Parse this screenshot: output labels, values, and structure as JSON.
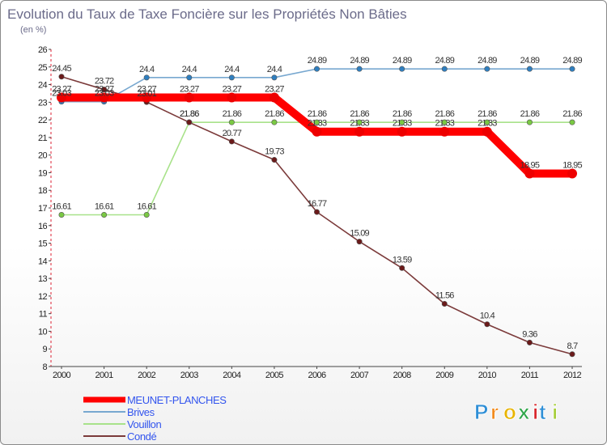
{
  "chart_data": {
    "type": "line",
    "title": "Evolution du Taux de Taxe Foncière sur les Propriétés Non Bâties",
    "subtitle": "(en %)",
    "xlabel": "",
    "ylabel": "",
    "categories": [
      "2000",
      "2001",
      "2002",
      "2003",
      "2004",
      "2005",
      "2006",
      "2007",
      "2008",
      "2009",
      "2010",
      "2011",
      "2012"
    ],
    "ylim": [
      8,
      26
    ],
    "yticks": [
      8,
      9,
      10,
      11,
      12,
      13,
      14,
      15,
      16,
      17,
      18,
      19,
      20,
      21,
      22,
      23,
      24,
      25,
      26
    ],
    "grid": false,
    "legend_position": "bottom-left",
    "series": [
      {
        "name": "MEUNET-PLANCHES",
        "color": "#ff0000",
        "point_color": "#ee0000",
        "width": "thick",
        "values": [
          23.27,
          23.27,
          23.27,
          23.27,
          23.27,
          23.27,
          21.33,
          21.33,
          21.33,
          21.33,
          21.33,
          18.95,
          18.95
        ],
        "labels": [
          "23.27",
          "23.27",
          "23.27",
          "23.27",
          "23.27",
          "23.27",
          "21.33",
          "21.33",
          "21.33",
          "21.33",
          "21.33",
          "18.95",
          "18.95"
        ]
      },
      {
        "name": "Brives",
        "color": "#78a8d0",
        "point_color": "#2f7fc0",
        "width": "thin",
        "values": [
          23.03,
          23.03,
          24.4,
          24.4,
          24.4,
          24.4,
          24.89,
          24.89,
          24.89,
          24.89,
          24.89,
          24.89,
          24.89
        ],
        "labels": [
          "23.03",
          "23.03",
          "24.4",
          "24.4",
          "24.4",
          "24.4",
          "24.89",
          "24.89",
          "24.89",
          "24.89",
          "24.89",
          "24.89",
          "24.89"
        ]
      },
      {
        "name": "Vouillon",
        "color": "#a8e28a",
        "point_color": "#7ac943",
        "width": "thin",
        "values": [
          16.61,
          16.61,
          16.61,
          21.86,
          21.86,
          21.86,
          21.86,
          21.86,
          21.86,
          21.86,
          21.86,
          21.86,
          21.86
        ],
        "labels": [
          "16.61",
          "16.61",
          "16.61",
          "21.86",
          "21.86",
          "21.86",
          "21.86",
          "21.86",
          "21.86",
          "21.86",
          "21.86",
          "21.86",
          "21.86"
        ]
      },
      {
        "name": "Condé",
        "color": "#7b3a3a",
        "point_color": "#6b1a1a",
        "width": "thin",
        "values": [
          24.45,
          23.72,
          23.01,
          21.86,
          20.77,
          19.73,
          16.77,
          15.09,
          13.59,
          11.56,
          10.4,
          9.36,
          8.7
        ],
        "labels": [
          "24.45",
          "23.72",
          "23.01",
          "21.86",
          "20.77",
          "19.73",
          "16.77",
          "15.09",
          "13.59",
          "11.56",
          "10.4",
          "9.36",
          "8.7"
        ]
      }
    ]
  },
  "logo": {
    "letters": [
      "P",
      "r",
      "o",
      "x",
      "i",
      "t",
      "i"
    ],
    "colors": [
      "#2f8fd6",
      "#f28a1c",
      "#e8b400",
      "#2fa64a",
      "#d8242a",
      "#2f8fd6",
      "#a6ce39"
    ]
  }
}
